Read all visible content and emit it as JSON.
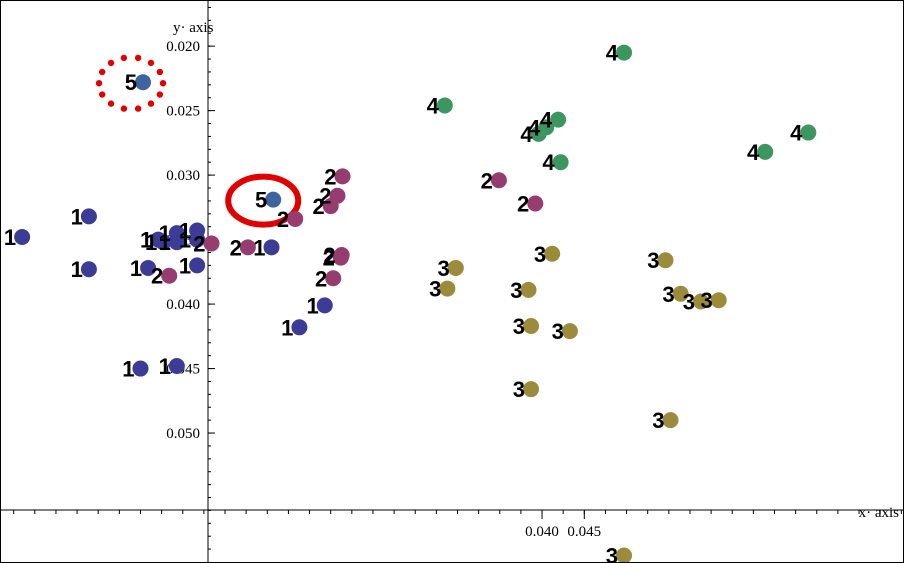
{
  "chart_data": {
    "type": "scatter",
    "title": "",
    "xlabel": "x· axis",
    "ylabel": "y· axis",
    "x_axis": {
      "ticks": [
        {
          "value": 0.045,
          "label": "0.045"
        },
        {
          "value": 0.04,
          "label": "0.040"
        }
      ],
      "minor_step": 0.0025,
      "range": [
        -0.024,
        0.0827
      ]
    },
    "y_axis": {
      "ticks": [
        {
          "value": 0.02,
          "label": "0.020"
        },
        {
          "value": 0.025,
          "label": "0.025"
        },
        {
          "value": 0.03,
          "label": "0.030"
        },
        {
          "value": 0.035,
          "label": "0.035"
        },
        {
          "value": 0.04,
          "label": "0.040"
        },
        {
          "value": 0.045,
          "label": "0.045"
        },
        {
          "value": 0.05,
          "label": "0.050"
        }
      ],
      "minor_step": 0.001,
      "range": [
        0.0165,
        0.06
      ]
    },
    "grid": false,
    "legend": "none",
    "series": [
      {
        "label": "1",
        "color": "#3c3c96",
        "points": [
          [
            -0.0215,
            0.0348
          ],
          [
            -0.0136,
            0.0332
          ],
          [
            -0.0136,
            0.0373
          ],
          [
            -0.0066,
            0.0372
          ],
          [
            -0.0054,
            0.035
          ],
          [
            -0.0048,
            0.0352
          ],
          [
            -0.0032,
            0.0352
          ],
          [
            -0.0032,
            0.0345
          ],
          [
            -0.0032,
            0.0448
          ],
          [
            -0.0008,
            0.035
          ],
          [
            -0.0008,
            0.037
          ],
          [
            -0.0008,
            0.0343
          ],
          [
            -0.0075,
            0.045
          ],
          [
            0.008,
            0.0356
          ],
          [
            0.0143,
            0.0401
          ],
          [
            0.0113,
            0.0418
          ]
        ]
      },
      {
        "label": "2",
        "color": "#963c6e",
        "points": [
          [
            0.0164,
            0.0301
          ],
          [
            0.0158,
            0.0316
          ],
          [
            0.015,
            0.0324
          ],
          [
            0.0108,
            0.0334
          ],
          [
            0.0009,
            0.0353
          ],
          [
            0.0052,
            0.0356
          ],
          [
            0.0163,
            0.0362
          ],
          [
            0.0162,
            0.0364
          ],
          [
            0.0153,
            0.038
          ],
          [
            -0.0041,
            0.0378
          ],
          [
            0.0349,
            0.0304
          ],
          [
            0.0392,
            0.0322
          ]
        ]
      },
      {
        "label": "3",
        "color": "#9b8c3c",
        "points": [
          [
            0.0412,
            0.0361
          ],
          [
            0.0298,
            0.0372
          ],
          [
            0.0288,
            0.0388
          ],
          [
            0.0384,
            0.0389
          ],
          [
            0.0387,
            0.0417
          ],
          [
            0.0433,
            0.0421
          ],
          [
            0.0546,
            0.0366
          ],
          [
            0.0564,
            0.0392
          ],
          [
            0.0588,
            0.0398
          ],
          [
            0.0609,
            0.0397
          ],
          [
            0.0387,
            0.0466
          ],
          [
            0.0552,
            0.049
          ],
          [
            0.0497,
            0.0595
          ]
        ]
      },
      {
        "label": "4",
        "color": "#3c9660",
        "points": [
          [
            0.0497,
            0.0205
          ],
          [
            0.0285,
            0.0246
          ],
          [
            0.0419,
            0.0257
          ],
          [
            0.0405,
            0.0263
          ],
          [
            0.0396,
            0.0268
          ],
          [
            0.0422,
            0.029
          ],
          [
            0.0664,
            0.0282
          ],
          [
            0.0715,
            0.0267
          ]
        ]
      },
      {
        "label": "5",
        "color": "#3c64a0",
        "points": [
          [
            -0.0072,
            0.0228
          ],
          [
            0.0082,
            0.0319
          ]
        ]
      }
    ],
    "annotations": [
      {
        "type": "dotted-circle",
        "color": "#e00000",
        "around_series": "5",
        "around_point": 0
      },
      {
        "type": "solid-circle",
        "color": "#e00000",
        "around_series": "5",
        "around_point": 1
      }
    ]
  }
}
